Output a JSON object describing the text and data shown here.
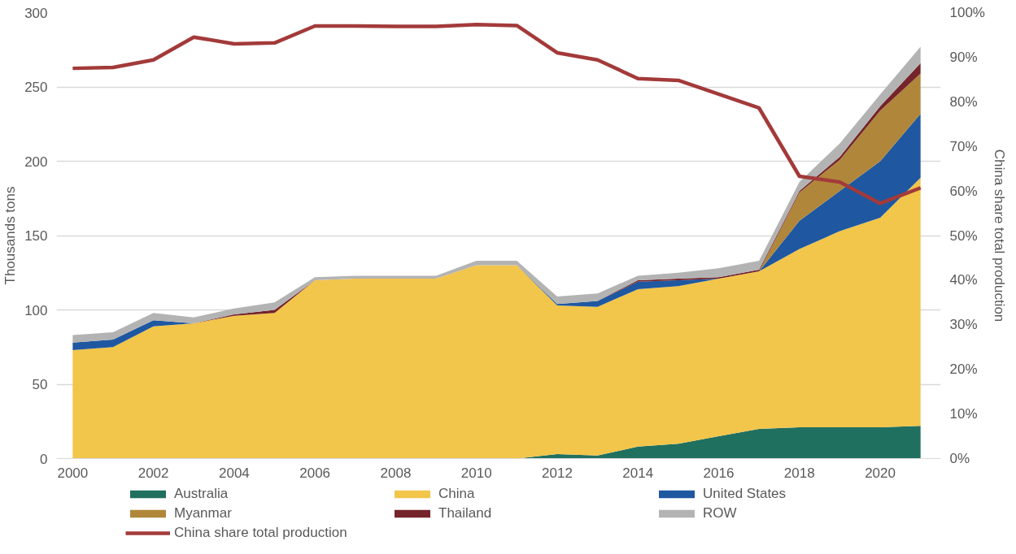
{
  "chart_data": {
    "type": "area",
    "stacked": true,
    "ylabel": "Thousands tons",
    "y2label": "China share total production",
    "x": [
      2000,
      2001,
      2002,
      2003,
      2004,
      2005,
      2006,
      2007,
      2008,
      2009,
      2010,
      2011,
      2012,
      2013,
      2014,
      2015,
      2016,
      2017,
      2018,
      2019,
      2020,
      2021
    ],
    "series": [
      {
        "name": "Australia",
        "color": "#207060",
        "values": [
          0,
          0,
          0,
          0,
          0,
          0,
          0,
          0,
          0,
          0,
          0,
          0,
          3,
          2,
          8,
          10,
          15,
          20,
          21,
          21,
          21,
          22
        ]
      },
      {
        "name": "China",
        "color": "#f2c54b",
        "values": [
          73,
          75,
          89,
          91,
          96,
          98,
          120,
          121,
          121,
          121,
          130,
          130,
          100,
          100,
          106,
          106,
          106,
          106,
          120,
          132,
          141,
          167
        ]
      },
      {
        "name": "United States",
        "color": "#1f58a0",
        "values": [
          5,
          5,
          4,
          0,
          0,
          0,
          0,
          0,
          0,
          0,
          0,
          0,
          1,
          4,
          5,
          4,
          0,
          0,
          19,
          27,
          38,
          43
        ]
      },
      {
        "name": "Myanmar",
        "color": "#b0863a",
        "values": [
          0,
          0,
          0,
          0,
          0,
          0,
          0,
          0,
          0,
          0,
          0,
          0,
          0,
          0,
          0,
          0,
          0,
          0,
          19,
          21,
          34,
          27
        ]
      },
      {
        "name": "Thailand",
        "color": "#74242a",
        "values": [
          0,
          0,
          0,
          0,
          1,
          2,
          0,
          0,
          0,
          0,
          0,
          0,
          0,
          0,
          1,
          1,
          1,
          1,
          1,
          2,
          3,
          7
        ]
      },
      {
        "name": "ROW",
        "color": "#b3b3b3",
        "values": [
          5,
          5,
          5,
          4,
          4,
          5,
          2,
          2,
          2,
          2,
          3,
          3,
          5,
          5,
          3,
          4,
          6,
          6,
          6,
          9,
          8,
          11
        ]
      },
      {
        "name": "China share total production",
        "type": "line",
        "axis": "y2",
        "color": "#a33a3a",
        "values": [
          87.5,
          87.7,
          89.4,
          94.5,
          93,
          93.2,
          97,
          97,
          96.9,
          96.9,
          97.3,
          97.1,
          91,
          89.4,
          85.2,
          84.8,
          81.7,
          78.6,
          63.3,
          62,
          57.2,
          60.7
        ]
      }
    ],
    "xlim": [
      1999.6,
      2021.5
    ],
    "xticks": [
      2000,
      2002,
      2004,
      2006,
      2008,
      2010,
      2012,
      2014,
      2016,
      2018,
      2020
    ],
    "ylim": [
      0,
      300
    ],
    "yticks": [
      0,
      50,
      100,
      150,
      200,
      250,
      300
    ],
    "y2lim": [
      0,
      100
    ],
    "y2ticks": [
      {
        "value": 0,
        "label": "0%"
      },
      {
        "value": 10,
        "label": "10%"
      },
      {
        "value": 20,
        "label": "20%"
      },
      {
        "value": 30,
        "label": "30%"
      },
      {
        "value": 40,
        "label": "40%"
      },
      {
        "value": 50,
        "label": "50%"
      },
      {
        "value": 60,
        "label": "60%"
      },
      {
        "value": 70,
        "label": "70%"
      },
      {
        "value": 80,
        "label": "80%"
      },
      {
        "value": 90,
        "label": "90%"
      },
      {
        "value": 100,
        "label": "100%"
      }
    ],
    "grid": "y",
    "legend": "bottom"
  }
}
